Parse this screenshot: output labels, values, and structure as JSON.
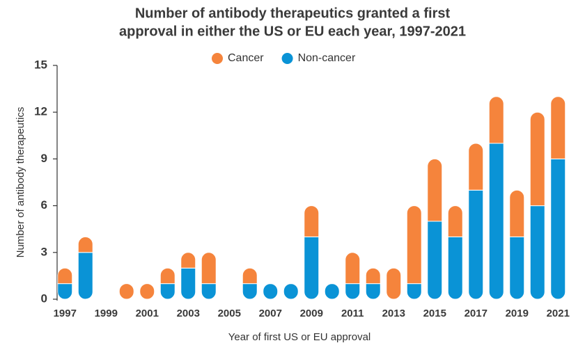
{
  "chart_data": {
    "type": "stacked_bar",
    "title": [
      "Number of antibody therapeutics granted a first",
      "approval in either the US or EU each year, 1997-2021"
    ],
    "x_label": "Year of first US or EU approval",
    "y_label": "Number of antibody therapeutics",
    "categories": [
      "1997",
      null,
      "1999",
      null,
      "2001",
      null,
      "2003",
      null,
      "2005",
      null,
      "2007",
      null,
      "2009",
      null,
      "2011",
      null,
      "2013",
      null,
      "2015",
      null,
      "2017",
      null,
      "2019",
      null,
      "2021"
    ],
    "series": [
      {
        "name": "Cancer",
        "color": "#f5843c",
        "values": [
          1,
          1,
          0,
          1,
          1,
          1,
          1,
          2,
          0,
          1,
          0,
          0,
          2,
          0,
          2,
          1,
          2,
          5,
          4,
          2,
          3,
          3,
          3,
          6,
          4
        ]
      },
      {
        "name": "Non-cancer",
        "color": "#0a93d6",
        "values": [
          1,
          3,
          0,
          0,
          0,
          1,
          2,
          1,
          0,
          1,
          1,
          1,
          4,
          1,
          1,
          1,
          0,
          1,
          5,
          4,
          7,
          10,
          4,
          6,
          9
        ]
      }
    ],
    "ylim": [
      0,
      15
    ],
    "yticks": [
      0,
      3,
      6,
      9,
      12,
      15
    ],
    "grid": false,
    "legend": "top"
  }
}
